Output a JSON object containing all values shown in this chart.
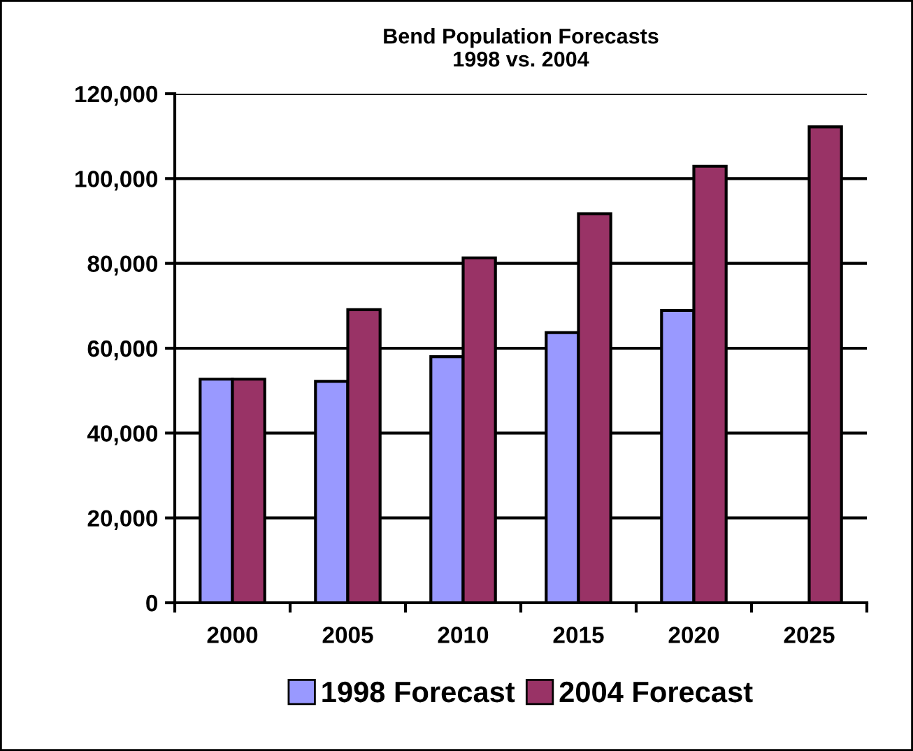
{
  "chart_data": {
    "type": "bar",
    "title": "Bend Population Forecasts\n1998 vs. 2004",
    "categories": [
      "2000",
      "2005",
      "2010",
      "2015",
      "2020",
      "2025"
    ],
    "series": [
      {
        "name": "1998 Forecast",
        "color": "#9999ff",
        "values": [
          52700,
          52200,
          58000,
          63700,
          68900,
          null
        ]
      },
      {
        "name": "2004 Forecast",
        "color": "#993366",
        "values": [
          52700,
          69100,
          81300,
          91700,
          102900,
          112200
        ]
      }
    ],
    "ylim": [
      0,
      120000
    ],
    "yticks": [
      {
        "value": 0,
        "label": "0"
      },
      {
        "value": 20000,
        "label": "20,000"
      },
      {
        "value": 40000,
        "label": "40,000"
      },
      {
        "value": 60000,
        "label": "60,000"
      },
      {
        "value": 80000,
        "label": "80,000"
      },
      {
        "value": 100000,
        "label": "100,000"
      },
      {
        "value": 120000,
        "label": "120,000"
      }
    ],
    "grid": "y",
    "legend": "bottom"
  }
}
